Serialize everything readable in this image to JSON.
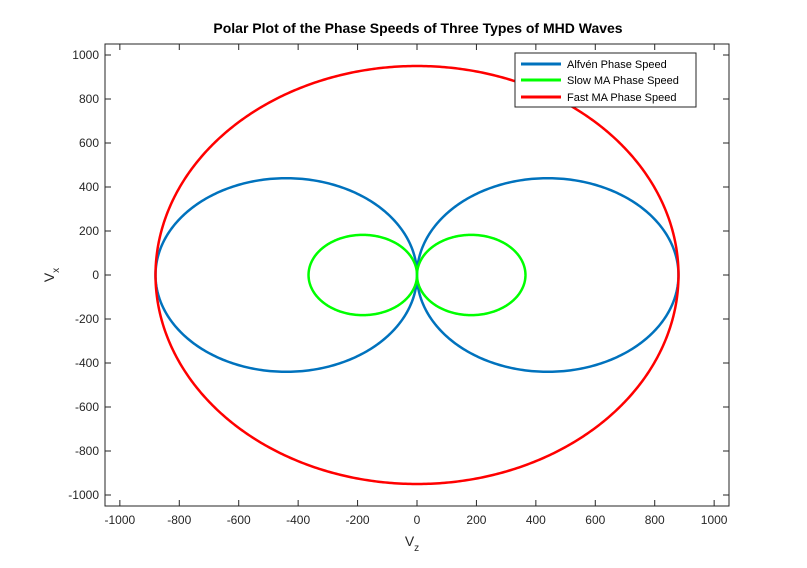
{
  "chart_data": {
    "type": "line",
    "title": "Polar Plot of the Phase Speeds of Three Types of MHD Waves",
    "xlabel": {
      "main": "V",
      "sub": "z"
    },
    "ylabel": {
      "main": "V",
      "sub": "x"
    },
    "xlim": [
      -1050,
      1050
    ],
    "ylim": [
      -1050,
      1050
    ],
    "xticks": [
      -1000,
      -800,
      -600,
      -400,
      -200,
      0,
      200,
      400,
      600,
      800,
      1000
    ],
    "yticks": [
      -1000,
      -800,
      -600,
      -400,
      -200,
      0,
      200,
      400,
      600,
      800,
      1000
    ],
    "grid": false,
    "legend_position": "top-right",
    "series": [
      {
        "name": "Alfvén Phase Speed",
        "shape": "two circles through origin",
        "max_speed": 880,
        "color": "#0072BD"
      },
      {
        "name": "Slow MA Phase Speed",
        "shape": "two circles through origin",
        "max_speed": 365,
        "color": "#00FF00"
      },
      {
        "name": "Fast MA Phase Speed",
        "shape": "ellipse",
        "max_speed": 880,
        "perpendicular_speed": 950,
        "color": "#FF0000"
      }
    ]
  }
}
